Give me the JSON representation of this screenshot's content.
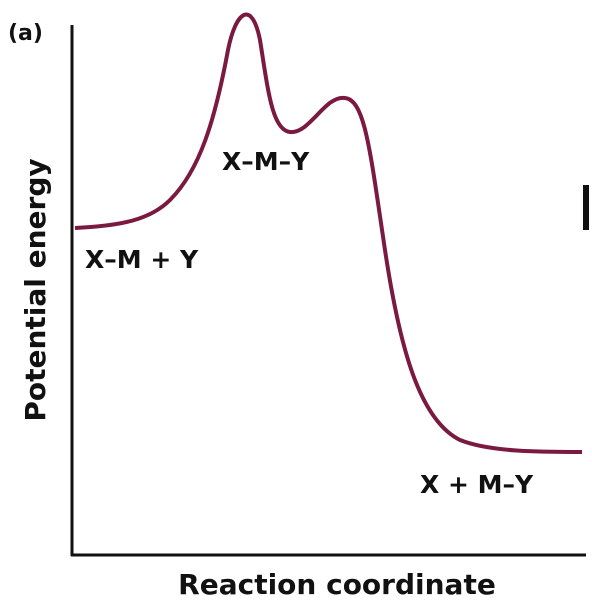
{
  "panel_label": "(a)",
  "y_axis_label": "Potential energy",
  "x_axis_label": "Reaction coordinate",
  "states": {
    "reactants": "X–M + Y",
    "intermediate": "X–M–Y",
    "products": "X + M–Y"
  }
}
